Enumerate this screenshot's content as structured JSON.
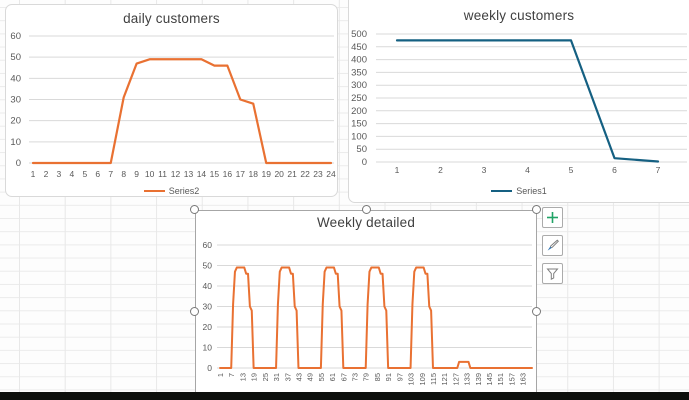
{
  "colors": {
    "accent_orange": "#E97132",
    "accent_blue": "#156082",
    "chart_grid": "#D9D9D9",
    "axis_text": "#595959",
    "title_text": "#404040",
    "selection_gray": "#A6A6A6",
    "taskbar_black": "#0d0f0c",
    "plus_green": "#21A366",
    "brush_blue": "#2E75B6",
    "tool_gray": "#7F7F7F"
  },
  "chart_data": [
    {
      "id": "daily-customers",
      "type": "line",
      "title": "daily customers",
      "xlabel": "",
      "ylabel": "",
      "ylim": [
        0,
        60
      ],
      "ytick": 10,
      "grid": true,
      "legend_position": "bottom",
      "x_labels": [
        "1",
        "2",
        "3",
        "4",
        "5",
        "6",
        "7",
        "8",
        "9",
        "10",
        "11",
        "12",
        "13",
        "14",
        "15",
        "16",
        "17",
        "18",
        "19",
        "20",
        "21",
        "22",
        "23",
        "24"
      ],
      "x_label_step": 1,
      "series": [
        {
          "name": "Series2",
          "color": "#E97132",
          "values": [
            0,
            0,
            0,
            0,
            0,
            0,
            0,
            31,
            47,
            49,
            49,
            49,
            49,
            49,
            46,
            46,
            30,
            28,
            0,
            0,
            0,
            0,
            0,
            0
          ]
        }
      ]
    },
    {
      "id": "weekly-customers",
      "type": "line",
      "title": "weekly customers",
      "xlabel": "",
      "ylabel": "",
      "ylim": [
        0,
        500
      ],
      "ytick": 50,
      "grid": true,
      "legend_position": "bottom",
      "x_labels": [
        "1",
        "2",
        "3",
        "4",
        "5",
        "6",
        "7"
      ],
      "x_label_step": 1,
      "series": [
        {
          "name": "Series1",
          "color": "#156082",
          "values": [
            475,
            475,
            475,
            475,
            475,
            15,
            2
          ]
        }
      ]
    },
    {
      "id": "weekly-detailed",
      "type": "line",
      "title": "Weekly detailed",
      "xlabel": "",
      "ylabel": "",
      "ylim": [
        0,
        60
      ],
      "ytick": 10,
      "grid": true,
      "legend_position": "none",
      "selected": true,
      "x_labels": [
        "1",
        "7",
        "13",
        "19",
        "25",
        "31",
        "37",
        "43",
        "49",
        "55",
        "61",
        "67",
        "73",
        "79",
        "85",
        "91",
        "97",
        "103",
        "109",
        "115",
        "121",
        "127",
        "133",
        "139",
        "145",
        "151",
        "157",
        "163"
      ],
      "x_label_step": 6,
      "x_label_rotation": -90,
      "series": [
        {
          "name": "Series1",
          "color": "#E97132",
          "values": [
            0,
            0,
            0,
            0,
            0,
            0,
            0,
            31,
            47,
            49,
            49,
            49,
            49,
            49,
            46,
            46,
            30,
            28,
            0,
            0,
            0,
            0,
            0,
            0,
            0,
            0,
            0,
            0,
            0,
            0,
            0,
            31,
            47,
            49,
            49,
            49,
            49,
            49,
            46,
            46,
            30,
            28,
            0,
            0,
            0,
            0,
            0,
            0,
            0,
            0,
            0,
            0,
            0,
            0,
            0,
            31,
            47,
            49,
            49,
            49,
            49,
            49,
            46,
            46,
            30,
            28,
            0,
            0,
            0,
            0,
            0,
            0,
            0,
            0,
            0,
            0,
            0,
            0,
            0,
            31,
            47,
            49,
            49,
            49,
            49,
            49,
            46,
            46,
            30,
            28,
            0,
            0,
            0,
            0,
            0,
            0,
            0,
            0,
            0,
            0,
            0,
            0,
            0,
            31,
            47,
            49,
            49,
            49,
            49,
            49,
            46,
            46,
            30,
            28,
            0,
            0,
            0,
            0,
            0,
            0,
            0,
            0,
            0,
            0,
            0,
            0,
            0,
            0,
            3,
            3,
            3,
            3,
            3,
            3,
            0,
            0,
            0,
            0,
            0,
            0,
            0,
            0,
            0,
            0,
            0,
            0,
            0,
            0,
            0,
            0,
            0,
            0,
            0,
            0,
            0,
            0,
            0,
            0,
            0,
            0,
            0,
            0,
            0,
            0,
            0,
            0,
            0,
            0
          ]
        }
      ]
    }
  ],
  "chart_tools": [
    {
      "name": "chart-elements",
      "icon": "plus-icon"
    },
    {
      "name": "chart-styles",
      "icon": "brush-icon"
    },
    {
      "name": "chart-filters",
      "icon": "funnel-icon"
    }
  ]
}
